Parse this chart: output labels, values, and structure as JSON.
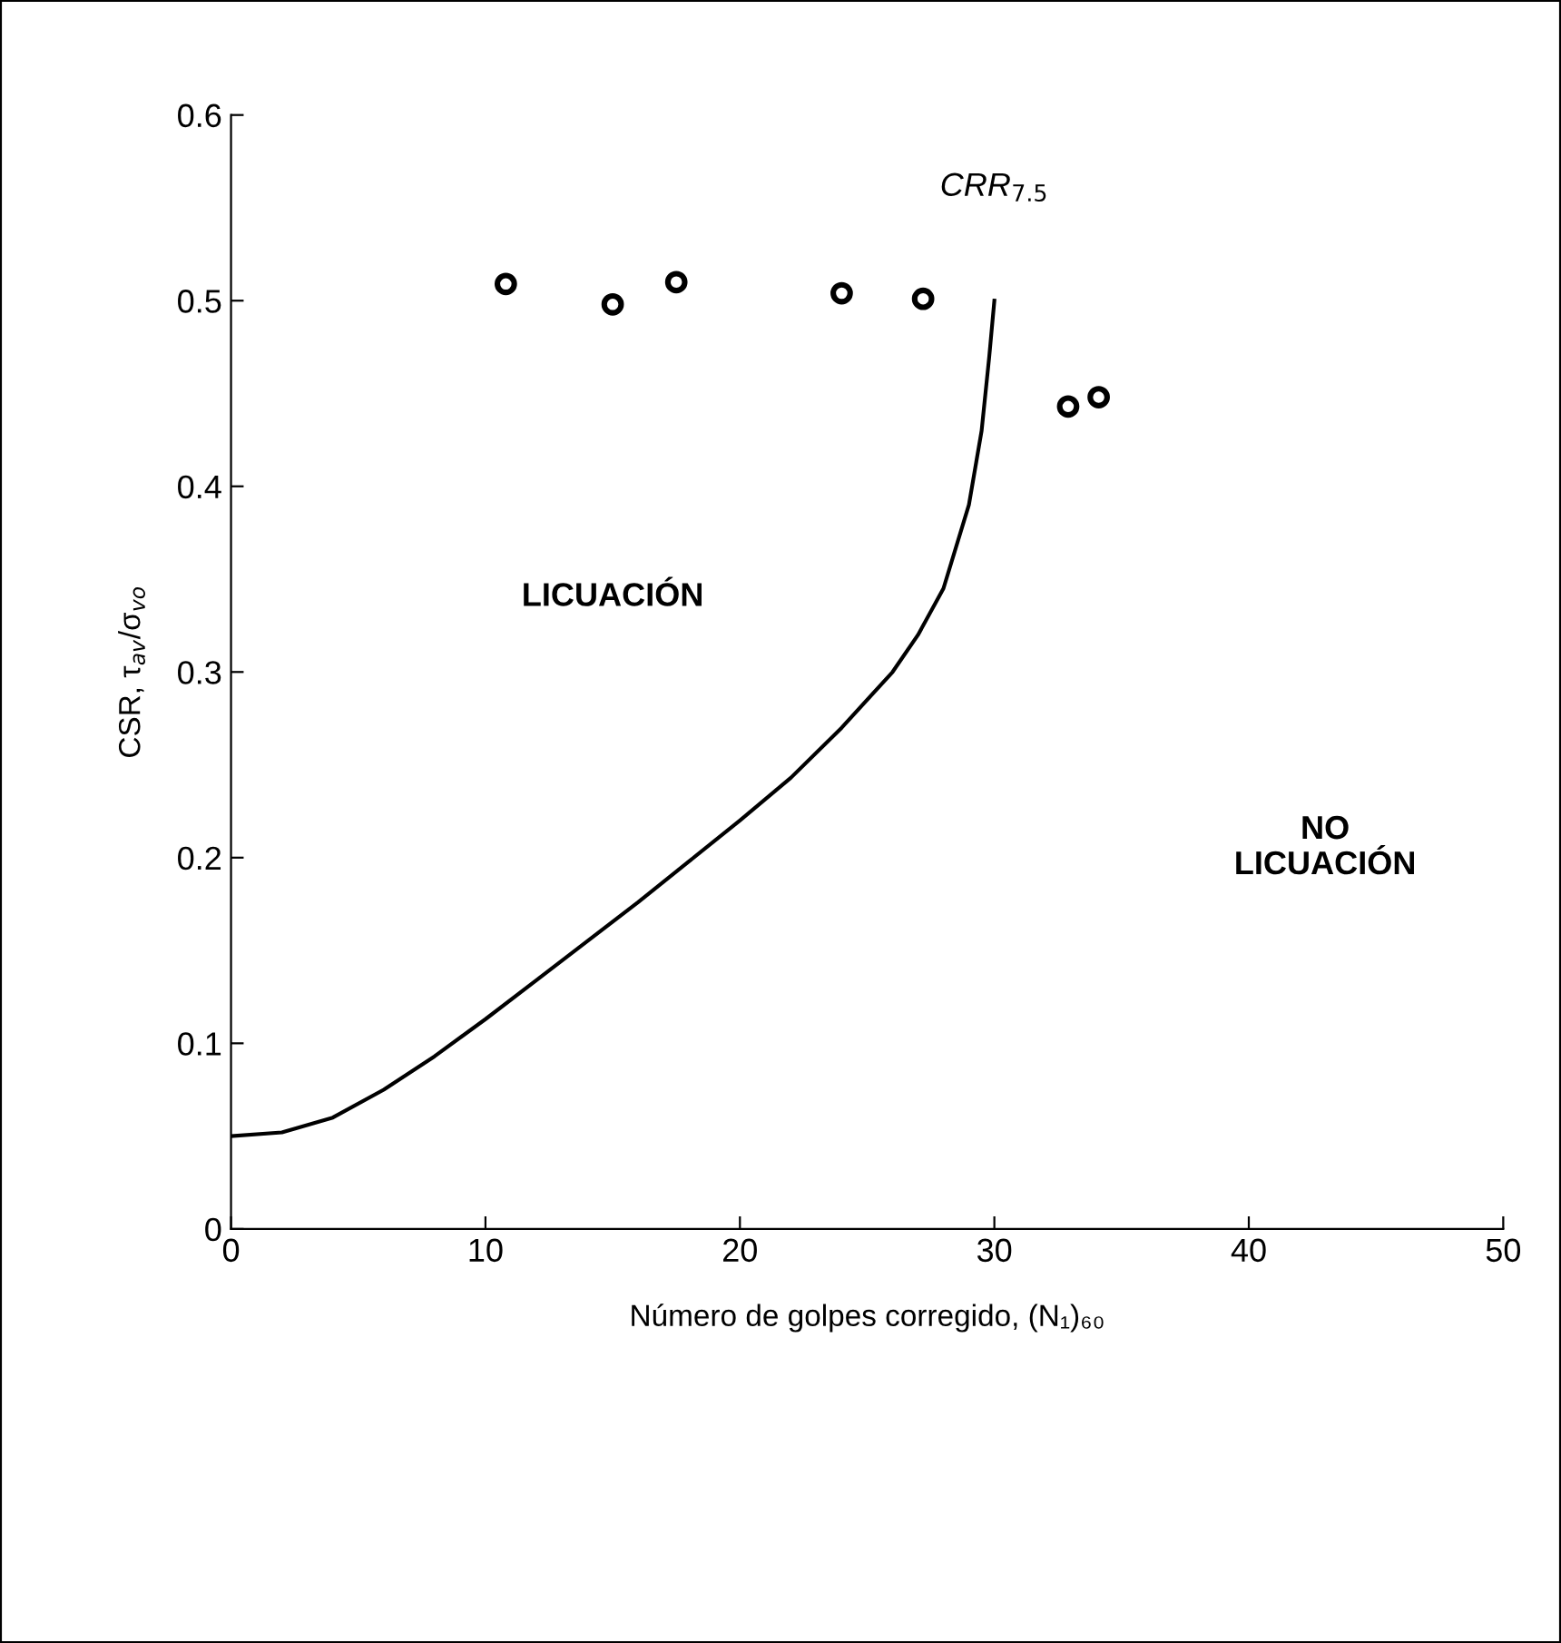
{
  "chart_data": {
    "type": "scatter",
    "xlabel": "Número de golpes corregido, (N₁)₆₀",
    "ylabel": "CSR, τ$_{av}$/σ$_{vo}$",
    "xlim": [
      0,
      50
    ],
    "ylim": [
      0,
      0.6
    ],
    "xticks": [
      0,
      10,
      20,
      30,
      40,
      50
    ],
    "yticks": [
      0,
      0.1,
      0.2,
      0.3,
      0.4,
      0.5,
      0.6
    ],
    "grid": false,
    "legend": false,
    "marker": "circle",
    "series": [
      {
        "color": "#000000",
        "x": [
          10.8,
          15,
          17.5,
          24,
          27.2,
          32.9,
          34.1
        ],
        "values": [
          0.509,
          0.498,
          0.51,
          0.504,
          0.501,
          0.443,
          0.448
        ]
      },
      {
        "type": "line",
        "color": "#000000",
        "line_style": "solid",
        "marker": "none",
        "x": [
          0,
          2,
          4,
          6,
          8,
          10,
          12,
          14,
          16,
          18,
          20,
          22,
          24,
          26,
          27,
          28,
          29,
          29.5,
          29.8,
          30
        ],
        "values": [
          0.05,
          0.052,
          0.06,
          0.075,
          0.093,
          0.113,
          0.134,
          0.155,
          0.176,
          0.198,
          0.22,
          0.243,
          0.27,
          0.3,
          0.32,
          0.345,
          0.39,
          0.43,
          0.47,
          0.5
        ]
      }
    ],
    "annotations": [
      "CRR$_{7.5}$",
      "LICUACIÓN",
      "NO\nLICUACIÓN"
    ]
  }
}
